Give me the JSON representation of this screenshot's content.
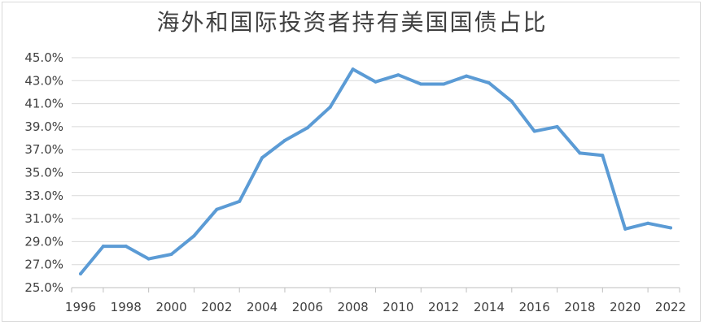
{
  "chart_data": {
    "type": "line",
    "title": "海外和国际投资者持有美国国债占比",
    "xlabel": "",
    "ylabel": "",
    "ylim": [
      25.0,
      45.0
    ],
    "yticks": [
      25.0,
      27.0,
      29.0,
      31.0,
      33.0,
      35.0,
      37.0,
      39.0,
      41.0,
      43.0,
      45.0
    ],
    "yticks_labels": [
      "25.0%",
      "27.0%",
      "29.0%",
      "31.0%",
      "33.0%",
      "35.0%",
      "37.0%",
      "39.0%",
      "41.0%",
      "43.0%",
      "45.0%"
    ],
    "xlim": [
      1996,
      2022
    ],
    "xticks": [
      "1996",
      "1998",
      "2000",
      "2002",
      "2004",
      "2006",
      "2008",
      "2010",
      "2012",
      "2014",
      "2016",
      "2018",
      "2020",
      "2022"
    ],
    "grid": true,
    "series": [
      {
        "color": "#5b9bd5",
        "x": [
          1996,
          1997,
          1998,
          1999,
          2000,
          2001,
          2002,
          2003,
          2004,
          2005,
          2006,
          2007,
          2008,
          2009,
          2010,
          2011,
          2012,
          2013,
          2014,
          2015,
          2016,
          2017,
          2018,
          2019,
          2020,
          2021,
          2022
        ],
        "values": [
          26.2,
          28.6,
          28.6,
          27.5,
          27.9,
          29.5,
          31.8,
          32.5,
          36.3,
          37.8,
          38.9,
          40.7,
          44.0,
          42.9,
          43.5,
          42.7,
          42.7,
          43.4,
          42.8,
          41.2,
          38.6,
          39.0,
          36.7,
          36.5,
          30.1,
          30.6,
          30.2
        ]
      }
    ]
  }
}
